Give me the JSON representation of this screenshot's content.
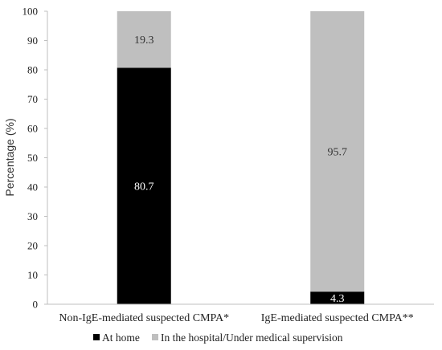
{
  "chart_data": {
    "type": "bar",
    "stacked": true,
    "categories": [
      "Non-IgE-mediated suspected CMPA*",
      "IgE-mediated suspected CMPA**"
    ],
    "series": [
      {
        "name": "At home",
        "values": [
          80.7,
          4.3
        ],
        "labels": [
          "80.7",
          "4.3"
        ],
        "color": "#000000",
        "label_color": "#ffffff"
      },
      {
        "name": "In the hospital/Under medical supervision",
        "values": [
          19.3,
          95.7
        ],
        "labels": [
          "19.3",
          "95.7"
        ],
        "color": "#bfbfbf",
        "label_color": "#333333"
      }
    ],
    "ylabel": "Percentage (%)",
    "ylim": [
      0,
      100
    ],
    "yticks": [
      "0",
      "10",
      "20",
      "30",
      "40",
      "50",
      "60",
      "70",
      "80",
      "90",
      "100"
    ],
    "legend": "bottom",
    "grid": false
  }
}
